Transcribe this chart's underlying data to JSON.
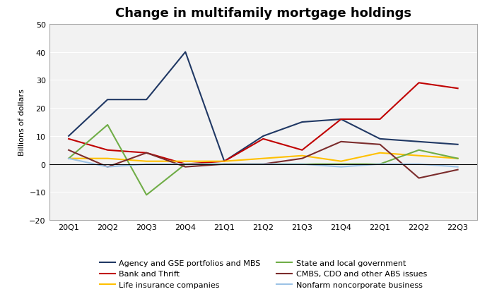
{
  "title": "Change in multifamily mortgage holdings",
  "ylabel": "Billions of dollars",
  "xlabels": [
    "20Q1",
    "20Q2",
    "20Q3",
    "20Q4",
    "21Q1",
    "21Q2",
    "21Q3",
    "21Q4",
    "22Q1",
    "22Q2",
    "22Q3"
  ],
  "ylim": [
    -20,
    50
  ],
  "yticks": [
    -20,
    -10,
    0,
    10,
    20,
    30,
    40,
    50
  ],
  "series": [
    {
      "label": "Agency and GSE portfolios and MBS",
      "color": "#203864",
      "values": [
        10,
        23,
        23,
        40,
        1,
        10,
        15,
        16,
        9,
        8,
        7
      ]
    },
    {
      "label": "Bank and Thrift",
      "color": "#C00000",
      "values": [
        9,
        5,
        4,
        0,
        1,
        9,
        5,
        16,
        16,
        29,
        27
      ]
    },
    {
      "label": "Life insurance companies",
      "color": "#FFC000",
      "values": [
        2,
        2,
        1,
        1,
        1,
        2,
        3,
        1,
        4,
        3,
        2
      ]
    },
    {
      "label": "State and local government",
      "color": "#70AD47",
      "values": [
        2,
        14,
        -11,
        0,
        0,
        0,
        0,
        0,
        0,
        5,
        2
      ]
    },
    {
      "label": "CMBS, CDO and other ABS issues",
      "color": "#7B2C2C",
      "values": [
        5,
        -1,
        4,
        -1,
        0,
        0,
        2,
        8,
        7,
        -5,
        -2
      ]
    },
    {
      "label": "Nonfarm noncorporate business",
      "color": "#9DC3E6",
      "values": [
        2,
        -1,
        0,
        0,
        0,
        0,
        0,
        -1,
        0,
        0,
        -1
      ]
    }
  ],
  "figure_bg": "#FFFFFF",
  "plot_bg": "#F2F2F2",
  "grid_color": "#FFFFFF",
  "legend_order": [
    0,
    1,
    2,
    3,
    4,
    5
  ],
  "title_fontsize": 13,
  "axis_label_fontsize": 8,
  "tick_fontsize": 8,
  "legend_fontsize": 8,
  "linewidth": 1.5
}
